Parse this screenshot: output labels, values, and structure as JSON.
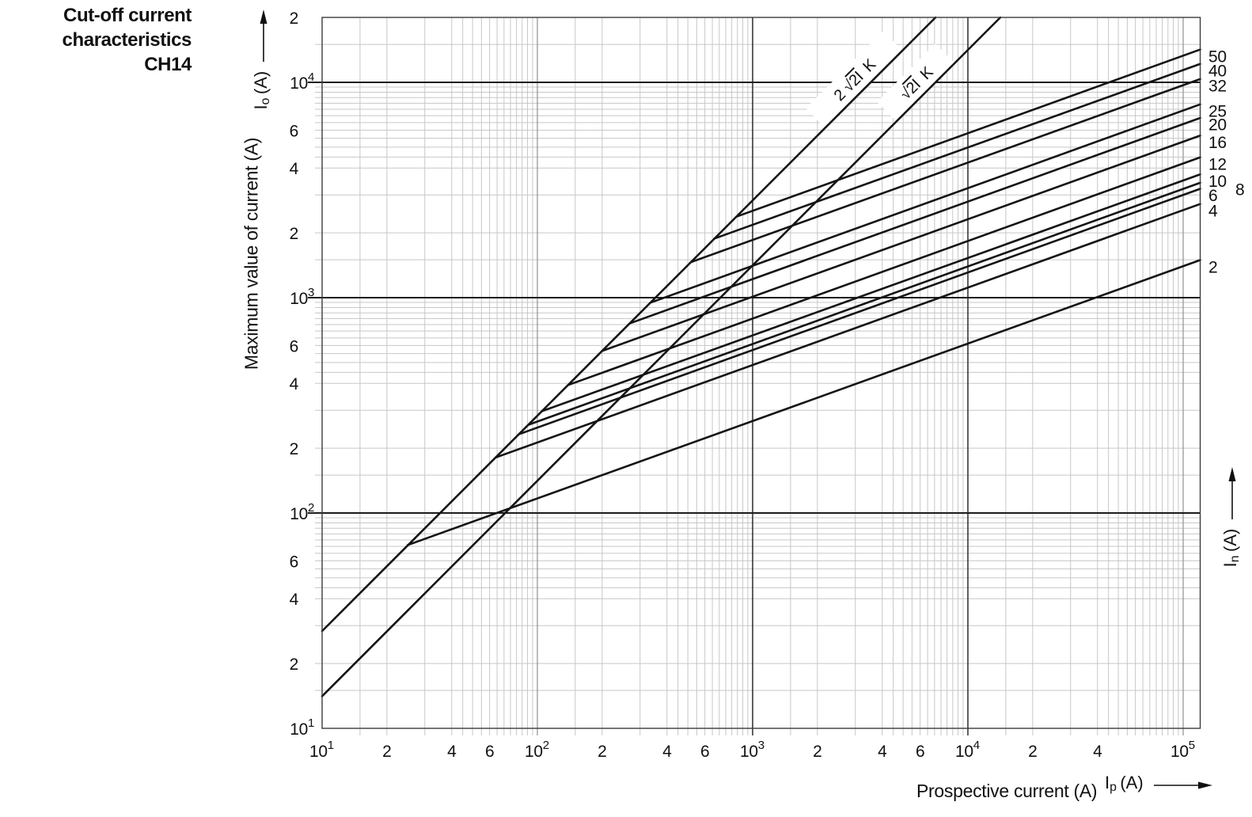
{
  "title": {
    "lines": [
      "Cut-off current",
      "characteristics",
      "CH14"
    ]
  },
  "axes": {
    "y_title": "Maximum value of current (A)",
    "x_title": "Prospective current (A)",
    "y_symbol": {
      "sym": "I",
      "sub": "o",
      "unit": "(A)"
    },
    "x_symbol": {
      "sym": "I",
      "sub": "p",
      "unit": "(A)"
    },
    "right_symbol": {
      "sym": "I",
      "sub": "n",
      "unit": "(A)"
    }
  },
  "colors": {
    "curve": "#141414",
    "grid_minor": "#c7c7c7",
    "grid_decade": "#8f8f8f",
    "grid_emphasis": "#1c1c1c"
  },
  "chart_data": {
    "type": "line",
    "title": "Cut-off current characteristics CH14",
    "xlabel": "Prospective current (A)",
    "ylabel": "Maximum value of current (A)",
    "log_x": true,
    "log_y": true,
    "grid": true,
    "x_range": [
      10,
      120000
    ],
    "y_range": [
      10,
      20000
    ],
    "x_ticks": [
      {
        "v": 10,
        "label": "10^1"
      },
      {
        "v": 20,
        "label": "2"
      },
      {
        "v": 40,
        "label": "4"
      },
      {
        "v": 60,
        "label": "6"
      },
      {
        "v": 100,
        "label": "10^2"
      },
      {
        "v": 200,
        "label": "2"
      },
      {
        "v": 400,
        "label": "4"
      },
      {
        "v": 600,
        "label": "6"
      },
      {
        "v": 1000,
        "label": "10^3"
      },
      {
        "v": 2000,
        "label": "2"
      },
      {
        "v": 4000,
        "label": "4"
      },
      {
        "v": 6000,
        "label": "6"
      },
      {
        "v": 10000,
        "label": "10^4"
      },
      {
        "v": 20000,
        "label": "2"
      },
      {
        "v": 40000,
        "label": "4"
      },
      {
        "v": 100000,
        "label": "10^5"
      }
    ],
    "y_ticks": [
      {
        "v": 20000,
        "label": "2"
      },
      {
        "v": 10000,
        "label": "10^4"
      },
      {
        "v": 6000,
        "label": "6"
      },
      {
        "v": 4000,
        "label": "4"
      },
      {
        "v": 2000,
        "label": "2"
      },
      {
        "v": 1000,
        "label": "10^3"
      },
      {
        "v": 600,
        "label": "6"
      },
      {
        "v": 400,
        "label": "4"
      },
      {
        "v": 200,
        "label": "2"
      },
      {
        "v": 100,
        "label": "10^2"
      },
      {
        "v": 60,
        "label": "6"
      },
      {
        "v": 40,
        "label": "4"
      },
      {
        "v": 20,
        "label": "2"
      },
      {
        "v": 10,
        "label": "10^1"
      }
    ],
    "grid_minors_per_decade": [
      1.5,
      2,
      3,
      4,
      4.5,
      5,
      5.5,
      6,
      6.5,
      7,
      7.5,
      8,
      8.5,
      9,
      9.5
    ],
    "emphasized_gridlines": {
      "x": [
        1000,
        10000
      ],
      "y": [
        100,
        1000,
        10000
      ]
    },
    "decade_gridlines": {
      "x": [
        100,
        100000
      ],
      "y": []
    },
    "peak_lines": [
      {
        "name": "2√2·Ik",
        "label": {
          "factor": "2",
          "radicand": "2I",
          "suffix": "K"
        },
        "points": [
          [
            10,
            28.3
          ],
          [
            7071,
            20000
          ]
        ],
        "label_center": [
          1079,
          100
        ]
      },
      {
        "name": "√2·Ik",
        "label": {
          "factor": "",
          "radicand": "2I",
          "suffix": "K"
        },
        "points": [
          [
            10,
            14.1
          ],
          [
            14142,
            20000
          ]
        ],
        "label_center": [
          1157,
          104
        ]
      }
    ],
    "series": [
      {
        "name": "50",
        "points": [
          [
            843,
            2380
          ],
          [
            100000,
            13300
          ]
        ]
      },
      {
        "name": "40",
        "points": [
          [
            663,
            1880
          ],
          [
            100000,
            11400
          ]
        ]
      },
      {
        "name": "32",
        "points": [
          [
            515,
            1460
          ],
          [
            100000,
            9700
          ]
        ]
      },
      {
        "name": "25",
        "points": [
          [
            337,
            950
          ],
          [
            100000,
            7400
          ]
        ]
      },
      {
        "name": "20",
        "points": [
          [
            269,
            760
          ],
          [
            100000,
            6400
          ]
        ]
      },
      {
        "name": "16",
        "points": [
          [
            200,
            566
          ],
          [
            100000,
            5300
          ]
        ]
      },
      {
        "name": "12",
        "points": [
          [
            139,
            393
          ],
          [
            100000,
            4200
          ]
        ]
      },
      {
        "name": "10",
        "points": [
          [
            105,
            297
          ],
          [
            100000,
            3500
          ]
        ]
      },
      {
        "name": "8",
        "points": [
          [
            91,
            257
          ],
          [
            100000,
            3200
          ]
        ],
        "label_dx": 34
      },
      {
        "name": "6",
        "points": [
          [
            82,
            232
          ],
          [
            100000,
            3000
          ]
        ]
      },
      {
        "name": "4",
        "points": [
          [
            64,
            181
          ],
          [
            100000,
            2550
          ]
        ]
      },
      {
        "name": "2",
        "points": [
          [
            25,
            71
          ],
          [
            100000,
            1400
          ]
        ]
      }
    ]
  }
}
